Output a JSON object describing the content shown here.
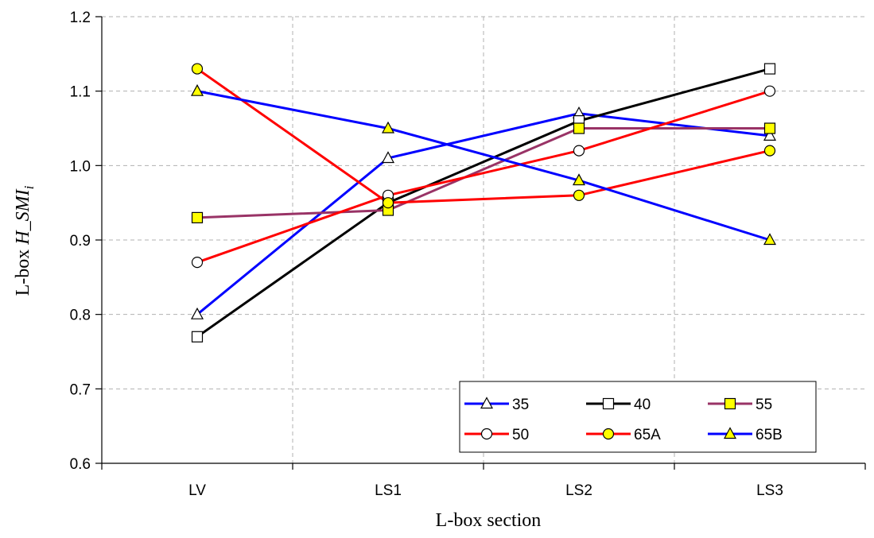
{
  "chart_data": {
    "type": "line",
    "categories": [
      "LV",
      "LS1",
      "LS2",
      "LS3"
    ],
    "xlabel": "L-box section",
    "ylabel_prefix": "L-box ",
    "ylabel_var": "H_SMI",
    "ylabel_sub": "i",
    "ylim": [
      0.6,
      1.2
    ],
    "yticks": [
      0.6,
      0.7,
      0.8,
      0.9,
      1.0,
      1.1,
      1.2
    ],
    "ytick_labels": [
      "0.6",
      "0.7",
      "0.8",
      "0.9",
      "1.0",
      "1.1",
      "1.2"
    ],
    "grid": true,
    "legend_position": "bottom-right",
    "series": [
      {
        "name": "35",
        "color": "#0000ff",
        "marker": "triangle",
        "marker_fill": "#ffffff",
        "values": [
          0.8,
          1.01,
          1.07,
          1.04
        ]
      },
      {
        "name": "40",
        "color": "#000000",
        "marker": "square",
        "marker_fill": "#ffffff",
        "values": [
          0.77,
          0.95,
          1.06,
          1.13
        ]
      },
      {
        "name": "55",
        "color": "#993366",
        "marker": "square",
        "marker_fill": "#ffff00",
        "values": [
          0.93,
          0.94,
          1.05,
          1.05
        ]
      },
      {
        "name": "50",
        "color": "#ff0000",
        "marker": "circle",
        "marker_fill": "#ffffff",
        "values": [
          0.87,
          0.96,
          1.02,
          1.1
        ]
      },
      {
        "name": "65A",
        "color": "#ff0000",
        "marker": "circle",
        "marker_fill": "#ffff00",
        "values": [
          1.13,
          0.95,
          0.96,
          1.02
        ]
      },
      {
        "name": "65B",
        "color": "#0000ff",
        "marker": "triangle",
        "marker_fill": "#ffff00",
        "values": [
          1.1,
          1.05,
          0.98,
          0.9
        ]
      }
    ]
  }
}
